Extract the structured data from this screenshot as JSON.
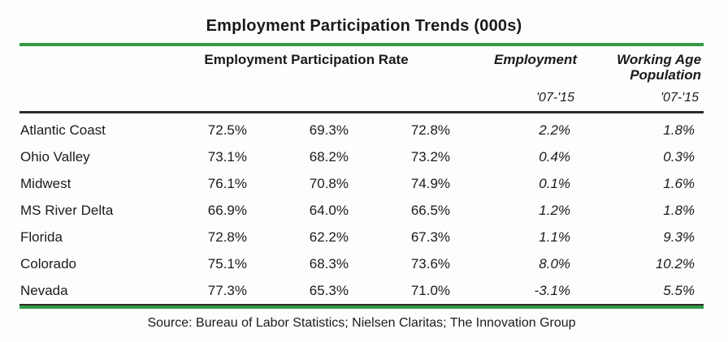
{
  "title": "Employment Participation Trends (000s)",
  "table": {
    "headers": {
      "rate_group": "Employment Participation Rate",
      "employment": "Employment",
      "working_age_population": "Working Age Population",
      "employment_period": "'07-'15",
      "working_age_period": "'07-'15"
    },
    "rows": [
      {
        "region": "Atlantic Coast",
        "rate1": "72.5%",
        "rate2": "69.3%",
        "rate3": "72.8%",
        "employment": "2.2%",
        "wap": "1.8%"
      },
      {
        "region": "Ohio Valley",
        "rate1": "73.1%",
        "rate2": "68.2%",
        "rate3": "73.2%",
        "employment": "0.4%",
        "wap": "0.3%"
      },
      {
        "region": "Midwest",
        "rate1": "76.1%",
        "rate2": "70.8%",
        "rate3": "74.9%",
        "employment": "0.1%",
        "wap": "1.6%"
      },
      {
        "region": "MS River Delta",
        "rate1": "66.9%",
        "rate2": "64.0%",
        "rate3": "66.5%",
        "employment": "1.2%",
        "wap": "1.8%"
      },
      {
        "region": "Florida",
        "rate1": "72.8%",
        "rate2": "62.2%",
        "rate3": "67.3%",
        "employment": "1.1%",
        "wap": "9.3%"
      },
      {
        "region": "Colorado",
        "rate1": "75.1%",
        "rate2": "68.3%",
        "rate3": "73.6%",
        "employment": "8.0%",
        "wap": "10.2%"
      },
      {
        "region": "Nevada",
        "rate1": "77.3%",
        "rate2": "65.3%",
        "rate3": "71.0%",
        "employment": "-3.1%",
        "wap": "5.5%"
      }
    ]
  },
  "source": "Source: Bureau of Labor Statistics; Nielsen Claritas; The Innovation Group",
  "colors": {
    "accent_green": "#339a47",
    "rule_dark": "#2b2b2b",
    "text": "#1b1b1b"
  }
}
